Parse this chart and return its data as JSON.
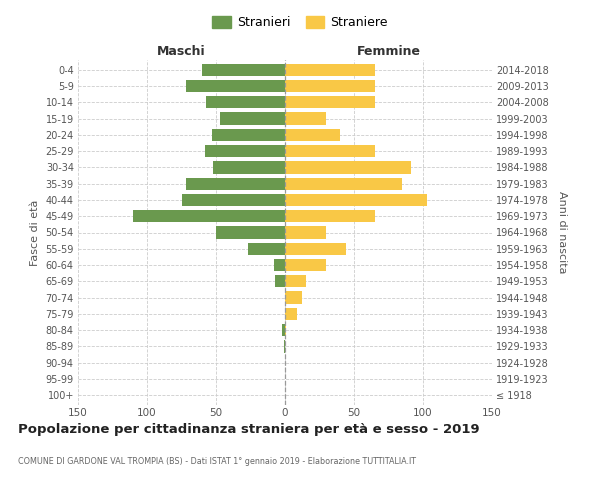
{
  "age_groups": [
    "100+",
    "95-99",
    "90-94",
    "85-89",
    "80-84",
    "75-79",
    "70-74",
    "65-69",
    "60-64",
    "55-59",
    "50-54",
    "45-49",
    "40-44",
    "35-39",
    "30-34",
    "25-29",
    "20-24",
    "15-19",
    "10-14",
    "5-9",
    "0-4"
  ],
  "birth_years": [
    "≤ 1918",
    "1919-1923",
    "1924-1928",
    "1929-1933",
    "1934-1938",
    "1939-1943",
    "1944-1948",
    "1949-1953",
    "1954-1958",
    "1959-1963",
    "1964-1968",
    "1969-1973",
    "1974-1978",
    "1979-1983",
    "1984-1988",
    "1989-1993",
    "1994-1998",
    "1999-2003",
    "2004-2008",
    "2009-2013",
    "2014-2018"
  ],
  "males": [
    0,
    0,
    0,
    1,
    2,
    0,
    0,
    7,
    8,
    27,
    50,
    110,
    75,
    72,
    52,
    58,
    53,
    47,
    57,
    72,
    60
  ],
  "females": [
    0,
    0,
    0,
    0,
    1,
    9,
    12,
    15,
    30,
    44,
    30,
    65,
    103,
    85,
    91,
    65,
    40,
    30,
    65,
    65,
    65
  ],
  "male_color": "#6a994e",
  "female_color": "#f9c846",
  "background_color": "#ffffff",
  "grid_color": "#cccccc",
  "dashed_color": "#999999",
  "text_color": "#555555",
  "title_color": "#222222",
  "title": "Popolazione per cittadinanza straniera per età e sesso - 2019",
  "subtitle": "COMUNE DI GARDONE VAL TROMPIA (BS) - Dati ISTAT 1° gennaio 2019 - Elaborazione TUTTITALIA.IT",
  "xlabel_left": "Maschi",
  "xlabel_right": "Femmine",
  "ylabel_left": "Fasce di età",
  "ylabel_right": "Anni di nascita",
  "legend_male": "Stranieri",
  "legend_female": "Straniere",
  "xlim": 150,
  "bar_height": 0.75,
  "xtick_vals": [
    -150,
    -100,
    -50,
    0,
    50,
    100,
    150
  ]
}
